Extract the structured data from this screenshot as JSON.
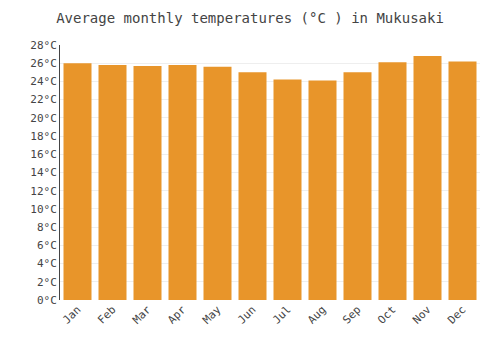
{
  "chart_data": {
    "type": "bar",
    "title": "Average monthly temperatures (°C ) in Mukusaki",
    "categories": [
      "Jan",
      "Feb",
      "Mar",
      "Apr",
      "May",
      "Jun",
      "Jul",
      "Aug",
      "Sep",
      "Oct",
      "Nov",
      "Dec"
    ],
    "values": [
      26.0,
      25.8,
      25.7,
      25.8,
      25.6,
      25.0,
      24.2,
      24.1,
      25.0,
      26.1,
      26.8,
      26.2
    ],
    "color": "#E8952A",
    "ylim": [
      0,
      28
    ],
    "yticks": [
      {
        "value": 0,
        "label": "0°C"
      },
      {
        "value": 2,
        "label": "2°C"
      },
      {
        "value": 4,
        "label": "4°C"
      },
      {
        "value": 6,
        "label": "6°C"
      },
      {
        "value": 8,
        "label": "8°C"
      },
      {
        "value": 10,
        "label": "10°C"
      },
      {
        "value": 12,
        "label": "12°C"
      },
      {
        "value": 14,
        "label": "14°C"
      },
      {
        "value": 16,
        "label": "16°C"
      },
      {
        "value": 18,
        "label": "18°C"
      },
      {
        "value": 20,
        "label": "20°C"
      },
      {
        "value": 22,
        "label": "22°C"
      },
      {
        "value": 24,
        "label": "24°C"
      },
      {
        "value": 26,
        "label": "26°C"
      },
      {
        "value": 28,
        "label": "28°C"
      }
    ],
    "grid": true
  }
}
